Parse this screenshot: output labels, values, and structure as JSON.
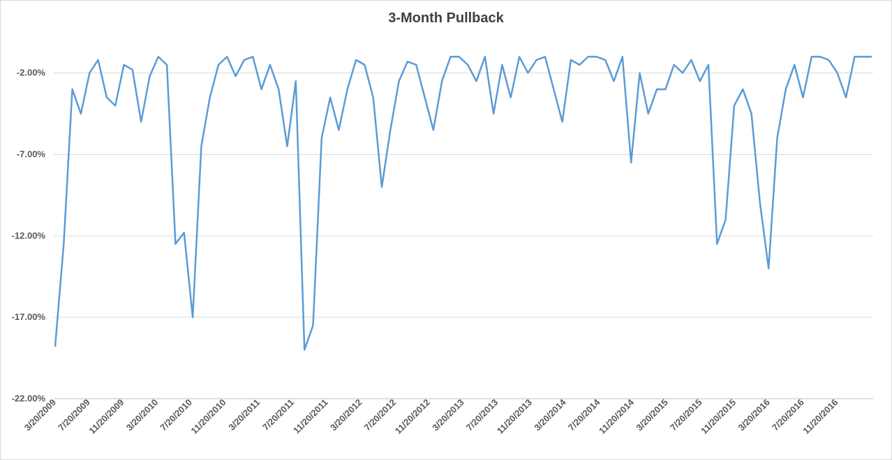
{
  "chart_data": {
    "type": "line",
    "title": "3-Month Pullback",
    "xlabel": "",
    "ylabel": "",
    "ylim": [
      -22,
      0
    ],
    "y_ticks": [
      "-2.00%",
      "-7.00%",
      "-12.00%",
      "-17.00%",
      "-22.00%"
    ],
    "y_tick_values": [
      -2,
      -7,
      -12,
      -17,
      -22
    ],
    "x_ticks": [
      "3/20/2009",
      "7/20/2009",
      "11/20/2009",
      "3/20/2010",
      "7/20/2010",
      "11/20/2010",
      "3/20/2011",
      "7/20/2011",
      "11/20/2011",
      "3/20/2012",
      "7/20/2012",
      "11/20/2012",
      "3/20/2013",
      "7/20/2013",
      "11/20/2013",
      "3/20/2014",
      "7/20/2014",
      "11/20/2014",
      "3/20/2015",
      "7/20/2015",
      "11/20/2015",
      "3/20/2016",
      "7/20/2016",
      "11/20/2016"
    ],
    "grid": true,
    "legend": "none",
    "series": [
      {
        "color": "#5b9bd5",
        "x": [
          "2009-03",
          "2009-04",
          "2009-05",
          "2009-06",
          "2009-07",
          "2009-08",
          "2009-09",
          "2009-10",
          "2009-11",
          "2009-12",
          "2010-01",
          "2010-02",
          "2010-03",
          "2010-04",
          "2010-05",
          "2010-06",
          "2010-07",
          "2010-08",
          "2010-09",
          "2010-10",
          "2010-11",
          "2010-12",
          "2011-01",
          "2011-02",
          "2011-03",
          "2011-04",
          "2011-05",
          "2011-06",
          "2011-07",
          "2011-08",
          "2011-09",
          "2011-10",
          "2011-11",
          "2011-12",
          "2012-01",
          "2012-02",
          "2012-03",
          "2012-04",
          "2012-05",
          "2012-06",
          "2012-07",
          "2012-08",
          "2012-09",
          "2012-10",
          "2012-11",
          "2012-12",
          "2013-01",
          "2013-02",
          "2013-03",
          "2013-04",
          "2013-05",
          "2013-06",
          "2013-07",
          "2013-08",
          "2013-09",
          "2013-10",
          "2013-11",
          "2013-12",
          "2014-01",
          "2014-02",
          "2014-03",
          "2014-04",
          "2014-05",
          "2014-06",
          "2014-07",
          "2014-08",
          "2014-09",
          "2014-10",
          "2014-11",
          "2014-12",
          "2015-01",
          "2015-02",
          "2015-03",
          "2015-04",
          "2015-05",
          "2015-06",
          "2015-07",
          "2015-08",
          "2015-09",
          "2015-10",
          "2015-11",
          "2015-12",
          "2016-01",
          "2016-02",
          "2016-03",
          "2016-04",
          "2016-05",
          "2016-06",
          "2016-07",
          "2016-08",
          "2016-09",
          "2016-10",
          "2016-11",
          "2016-12",
          "2017-01",
          "2017-02"
        ],
        "values": [
          -18.8,
          -12.5,
          -3.0,
          -4.5,
          -2.0,
          -1.2,
          -3.5,
          -4.0,
          -1.5,
          -1.8,
          -5.0,
          -2.2,
          -1.0,
          -1.5,
          -12.5,
          -11.8,
          -17.0,
          -6.5,
          -3.5,
          -1.5,
          -1.0,
          -2.2,
          -1.2,
          -1.0,
          -3.0,
          -1.5,
          -3.0,
          -6.5,
          -2.5,
          -19.0,
          -17.5,
          -6.0,
          -3.5,
          -5.5,
          -3.0,
          -1.2,
          -1.5,
          -3.5,
          -9.0,
          -5.5,
          -2.5,
          -1.3,
          -1.5,
          -3.5,
          -5.5,
          -2.5,
          -1.0,
          -1.0,
          -1.5,
          -2.5,
          -1.0,
          -4.5,
          -1.5,
          -3.5,
          -1.0,
          -2.0,
          -1.2,
          -1.0,
          -3.0,
          -5.0,
          -1.2,
          -1.5,
          -1.0,
          -1.0,
          -1.2,
          -2.5,
          -1.0,
          -7.5,
          -2.0,
          -4.5,
          -3.0,
          -3.0,
          -1.5,
          -2.0,
          -1.2,
          -2.5,
          -1.5,
          -12.5,
          -11.0,
          -4.0,
          -3.0,
          -4.5,
          -10.0,
          -14.0,
          -6.0,
          -3.0,
          -1.5,
          -3.5,
          -1.0,
          -1.0,
          -1.2,
          -2.0,
          -3.5,
          -1.0,
          -1.0,
          -1.0
        ]
      }
    ]
  }
}
